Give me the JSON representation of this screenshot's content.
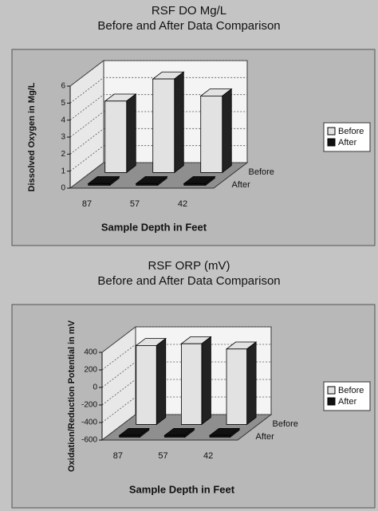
{
  "chart_data": [
    {
      "type": "bar3d",
      "title": "RSF DO Mg/L",
      "subtitle": "Before and After Data Comparison",
      "y_label": "Dissolved Oxygen in Mg/L",
      "x_label": "Sample Depth in Feet",
      "categories": [
        "87",
        "57",
        "42"
      ],
      "series": [
        {
          "name": "Before",
          "color": "#e2e2e2",
          "values": [
            4.2,
            5.5,
            4.5
          ]
        },
        {
          "name": "After",
          "color": "#111111",
          "values": [
            0.1,
            0.1,
            0.1
          ]
        }
      ],
      "ylim": [
        0,
        6
      ],
      "yticks": [
        0,
        1,
        2,
        3,
        4,
        5,
        6
      ],
      "grid": true,
      "legend": "right"
    },
    {
      "type": "bar3d",
      "title": "RSF ORP (mV)",
      "subtitle": "Before and After Data Comparison",
      "y_label": "Oxidation/Reduction Potential in mV",
      "x_label": "Sample Depth in Feet",
      "categories": [
        "87",
        "57",
        "42"
      ],
      "series": [
        {
          "name": "Before",
          "color": "#e2e2e2",
          "values": [
            300,
            320,
            260
          ]
        },
        {
          "name": "After",
          "color": "#111111",
          "values": [
            -580,
            -580,
            -580
          ]
        }
      ],
      "ylim": [
        -600,
        400
      ],
      "yticks": [
        -600,
        -400,
        -200,
        0,
        200,
        400
      ],
      "grid": true,
      "legend": "right"
    }
  ]
}
